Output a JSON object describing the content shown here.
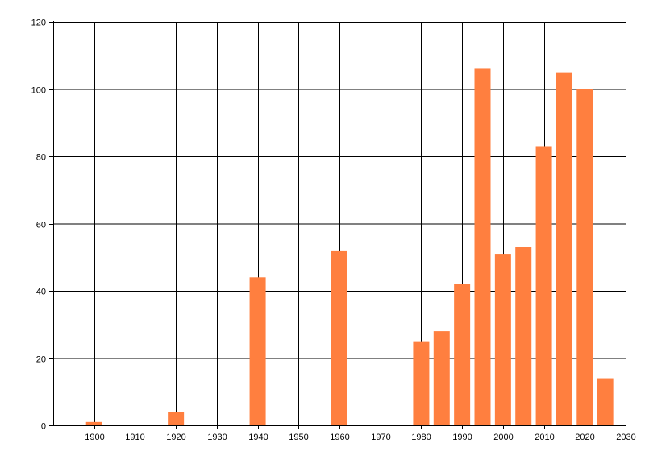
{
  "chart_data": {
    "type": "bar",
    "title": "",
    "xlabel": "",
    "ylabel": "",
    "x": [
      1900,
      1920,
      1940,
      1960,
      1980,
      1985,
      1990,
      1995,
      2000,
      2005,
      2010,
      2015,
      2020,
      2025
    ],
    "values": [
      1,
      4,
      44,
      52,
      25,
      28,
      42,
      106,
      51,
      53,
      83,
      105,
      100,
      14
    ],
    "xlim": [
      1890,
      2030
    ],
    "ylim": [
      0,
      120
    ],
    "x_ticks": [
      1900,
      1910,
      1920,
      1930,
      1940,
      1950,
      1960,
      1970,
      1980,
      1990,
      2000,
      2010,
      2020,
      2030
    ],
    "y_ticks": [
      0,
      20,
      40,
      60,
      80,
      100,
      120
    ],
    "grid": true,
    "bar_color": "#FF7F3F",
    "grid_color": "#000000",
    "legend": "none"
  }
}
